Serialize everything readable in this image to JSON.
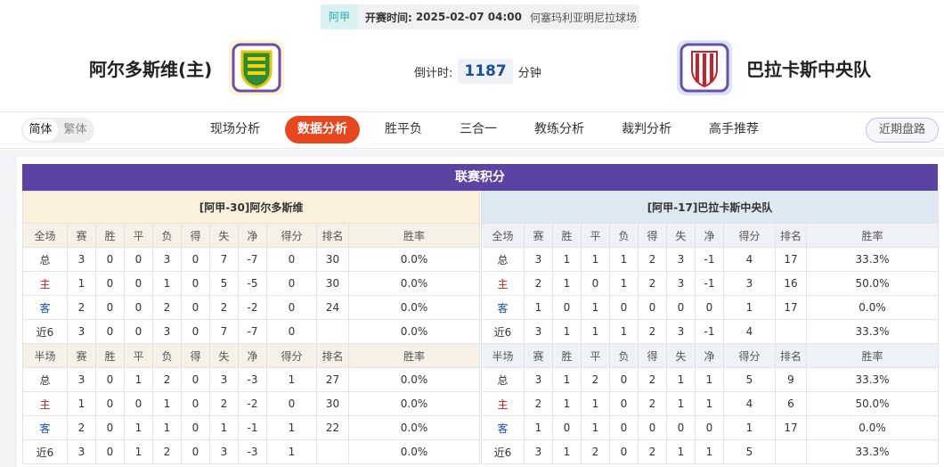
{
  "header": {
    "league": "阿甲",
    "kickoff_label": "开赛时间:",
    "kickoff_time": "2025-02-07 04:00",
    "venue": "何塞玛利亚明尼拉球场"
  },
  "match": {
    "home": "阿尔多斯维(主)",
    "away": "巴拉卡斯中央队",
    "countdown_label": "倒计时:",
    "countdown_value": "1187",
    "countdown_unit": "分钟"
  },
  "language": [
    "简体",
    "繁体"
  ],
  "nav": {
    "tabs": [
      "现场分析",
      "数据分析",
      "胜平负",
      "三合一",
      "教练分析",
      "裁判分析",
      "高手推荐"
    ],
    "active": 1,
    "side_button": "近期盘路"
  },
  "standings": {
    "title": "联赛积分",
    "tables": [
      {
        "title": "[阿甲-30]阿尔多斯维",
        "sections": [
          {
            "columns": [
              "全场",
              "赛",
              "胜",
              "平",
              "负",
              "得",
              "失",
              "净",
              "得分",
              "排名",
              "胜率"
            ],
            "rows": [
              [
                "总",
                "3",
                "0",
                "0",
                "3",
                "0",
                "7",
                "-7",
                "0",
                "30",
                "0.0%"
              ],
              [
                "主",
                "1",
                "0",
                "0",
                "1",
                "0",
                "5",
                "-5",
                "0",
                "30",
                "0.0%"
              ],
              [
                "客",
                "2",
                "0",
                "0",
                "2",
                "0",
                "2",
                "-2",
                "0",
                "24",
                "0.0%"
              ],
              [
                "近6",
                "3",
                "0",
                "0",
                "3",
                "0",
                "7",
                "-7",
                "0",
                null,
                "0.0%"
              ]
            ]
          },
          {
            "columns": [
              "半场",
              "赛",
              "胜",
              "平",
              "负",
              "得",
              "失",
              "净",
              "得分",
              "排名",
              "胜率"
            ],
            "rows": [
              [
                "总",
                "3",
                "0",
                "1",
                "2",
                "0",
                "3",
                "-3",
                "1",
                "27",
                "0.0%"
              ],
              [
                "主",
                "1",
                "0",
                "0",
                "1",
                "0",
                "2",
                "-2",
                "0",
                "30",
                "0.0%"
              ],
              [
                "客",
                "2",
                "0",
                "1",
                "1",
                "0",
                "1",
                "-1",
                "1",
                "22",
                "0.0%"
              ],
              [
                "近6",
                "3",
                "0",
                "1",
                "2",
                "0",
                "3",
                "-3",
                "1",
                null,
                "0.0%"
              ]
            ]
          }
        ]
      },
      {
        "title": "[阿甲-17]巴拉卡斯中央队",
        "sections": [
          {
            "columns": [
              "全场",
              "赛",
              "胜",
              "平",
              "负",
              "得",
              "失",
              "净",
              "得分",
              "排名",
              "胜率"
            ],
            "rows": [
              [
                "总",
                "3",
                "1",
                "1",
                "1",
                "2",
                "3",
                "-1",
                "4",
                "17",
                "33.3%"
              ],
              [
                "主",
                "2",
                "1",
                "0",
                "1",
                "2",
                "3",
                "-1",
                "3",
                "16",
                "50.0%"
              ],
              [
                "客",
                "1",
                "0",
                "1",
                "0",
                "0",
                "0",
                "0",
                "1",
                "17",
                "0.0%"
              ],
              [
                "近6",
                "3",
                "1",
                "1",
                "1",
                "2",
                "3",
                "-1",
                "4",
                null,
                "33.3%"
              ]
            ]
          },
          {
            "columns": [
              "半场",
              "赛",
              "胜",
              "平",
              "负",
              "得",
              "失",
              "净",
              "得分",
              "排名",
              "胜率"
            ],
            "rows": [
              [
                "总",
                "3",
                "1",
                "2",
                "0",
                "2",
                "1",
                "1",
                "5",
                "9",
                "33.3%"
              ],
              [
                "主",
                "2",
                "1",
                "1",
                "0",
                "2",
                "1",
                "1",
                "4",
                "6",
                "50.0%"
              ],
              [
                "客",
                "1",
                "0",
                "1",
                "0",
                "0",
                "0",
                "0",
                "1",
                "17",
                "0.0%"
              ],
              [
                "近6",
                "3",
                "1",
                "2",
                "0",
                "2",
                "1",
                "1",
                "5",
                null,
                "33.3%"
              ]
            ]
          }
        ]
      }
    ]
  }
}
